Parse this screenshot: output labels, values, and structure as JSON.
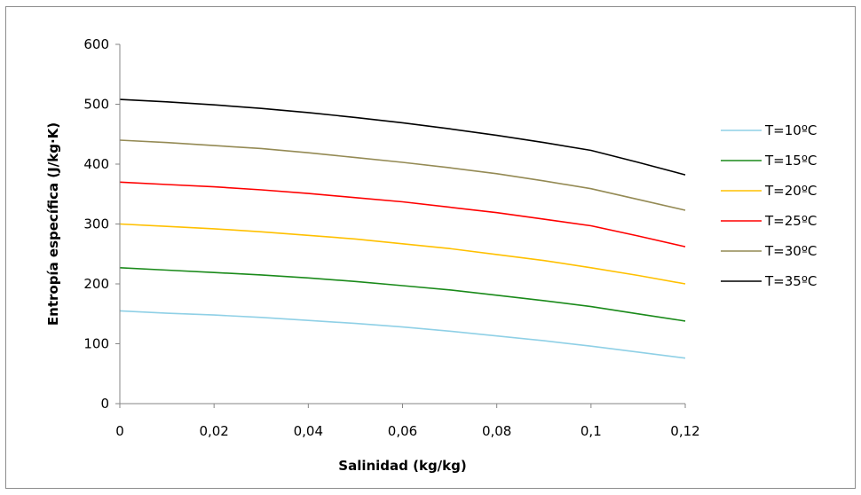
{
  "chart_data": {
    "type": "line",
    "xlabel": "Salinidad  (kg/kg)",
    "ylabel": "Entropía específica  (J/kg·K)",
    "xlim": [
      0,
      0.12
    ],
    "ylim": [
      0,
      600
    ],
    "x_ticks": [
      0,
      0.02,
      0.04,
      0.06,
      0.08,
      0.1,
      0.12
    ],
    "x_tick_labels": [
      "0",
      "0,02",
      "0,04",
      "0,06",
      "0,08",
      "0,1",
      "0,12"
    ],
    "y_ticks": [
      0,
      100,
      200,
      300,
      400,
      500,
      600
    ],
    "y_tick_labels": [
      "0",
      "100",
      "200",
      "300",
      "400",
      "500",
      "600"
    ],
    "grid": false,
    "legend_position": "right",
    "x": [
      0,
      0.01,
      0.02,
      0.03,
      0.04,
      0.05,
      0.06,
      0.07,
      0.08,
      0.09,
      0.1,
      0.11,
      0.12
    ],
    "series": [
      {
        "name": "T=10ºC",
        "color": "#8fd0e6",
        "values": [
          155,
          151,
          148,
          144,
          139,
          134,
          128,
          121,
          113,
          105,
          96,
          86,
          76
        ]
      },
      {
        "name": "T=15ºC",
        "color": "#1a8a1a",
        "values": [
          227,
          223,
          219,
          215,
          210,
          204,
          197,
          190,
          181,
          172,
          162,
          150,
          138
        ]
      },
      {
        "name": "T=20ºC",
        "color": "#ffc000",
        "values": [
          300,
          296,
          292,
          287,
          281,
          275,
          267,
          259,
          249,
          239,
          227,
          214,
          200
        ]
      },
      {
        "name": "T=25ºC",
        "color": "#ff0000",
        "values": [
          370,
          366,
          362,
          357,
          351,
          344,
          337,
          328,
          319,
          308,
          297,
          280,
          262
        ]
      },
      {
        "name": "T=30ºC",
        "color": "#948a54",
        "values": [
          440,
          436,
          431,
          426,
          419,
          411,
          403,
          394,
          384,
          372,
          359,
          341,
          323
        ]
      },
      {
        "name": "T=35ºC",
        "color": "#000000",
        "values": [
          508,
          504,
          499,
          493,
          486,
          478,
          469,
          459,
          448,
          436,
          423,
          403,
          382
        ]
      }
    ]
  }
}
